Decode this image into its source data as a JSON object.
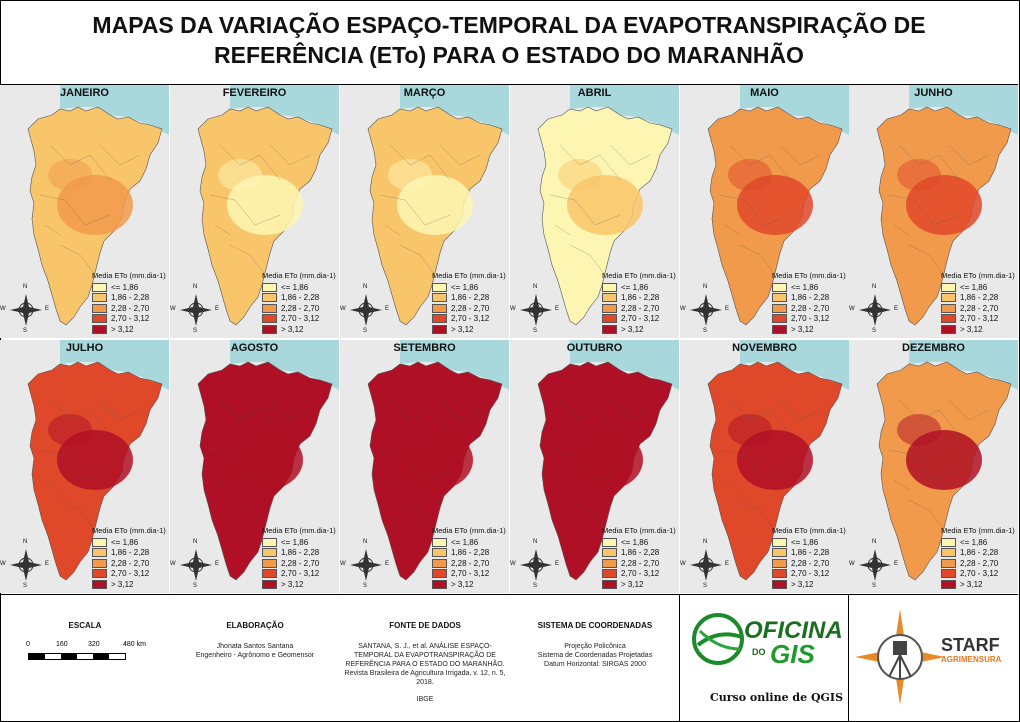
{
  "title": {
    "line1": "MAPAS DA VARIAÇÃO ESPAÇO-TEMPORAL DA EVAPOTRANSPIRAÇÃO DE",
    "line2": "REFERÊNCIA (ETo) PARA O ESTADO DO MARANHÃO"
  },
  "legend": {
    "title": "Media ETo (mm.dia-1)",
    "classes": [
      {
        "label": "<= 1,86",
        "color": "#fdf6b3"
      },
      {
        "label": "1,86 - 2,28",
        "color": "#f9c56a"
      },
      {
        "label": "2,28 - 2,70",
        "color": "#f29a4c"
      },
      {
        "label": "2,70 - 3,12",
        "color": "#e0482a"
      },
      {
        "label": "> 3,12",
        "color": "#b01025"
      }
    ]
  },
  "compass": {
    "n": "N",
    "s": "S",
    "e": "E",
    "w": "W"
  },
  "months": [
    {
      "name": "JANEIRO",
      "base": 1,
      "hot": 2
    },
    {
      "name": "FEVEREIRO",
      "base": 1,
      "hot": 0
    },
    {
      "name": "MARÇO",
      "base": 1,
      "hot": 0
    },
    {
      "name": "ABRIL",
      "base": 0,
      "hot": 1
    },
    {
      "name": "MAIO",
      "base": 2,
      "hot": 3
    },
    {
      "name": "JUNHO",
      "base": 2,
      "hot": 3
    },
    {
      "name": "JULHO",
      "base": 3,
      "hot": 4
    },
    {
      "name": "AGOSTO",
      "base": 4,
      "hot": 4
    },
    {
      "name": "SETEMBRO",
      "base": 4,
      "hot": 4
    },
    {
      "name": "OUTUBRO",
      "base": 4,
      "hot": 4
    },
    {
      "name": "NOVEMBRO",
      "base": 3,
      "hot": 4
    },
    {
      "name": "DEZEMBRO",
      "base": 2,
      "hot": 4
    }
  ],
  "footer": {
    "escala": {
      "heading": "ESCALA",
      "ticks": [
        "0",
        "160",
        "320",
        "480 km"
      ]
    },
    "elaboracao": {
      "heading": "ELABORAÇÃO",
      "lines": [
        "Jhonata Santos Santana",
        "Engenheiro - Agrônomo e Geomensor"
      ]
    },
    "fonte": {
      "heading": "FONTE DE DADOS",
      "lines": [
        "SANTANA, S. J., et al. ANÁLISE ESPAÇO-",
        "TEMPORAL DA EVAPOTRANSPIRAÇÃO DE",
        "REFERÊNCIA PARA O ESTADO DO MARANHÃO.",
        "Revista Brasileira de Agricultura Irrigada, v. 12, n. 5,",
        "2018."
      ],
      "extra": "IBGE"
    },
    "sistema": {
      "heading": "SISTEMA DE COORDENADAS",
      "lines": [
        "Projeção Policônica",
        "Sistema de Coordenadas Projetadas",
        "Datum Horizontal: SIRGAS 2000"
      ]
    },
    "logo1": {
      "line1": "OFICINA",
      "do": "DO",
      "gis": "GIS",
      "tagline": "Curso online de QGIS"
    },
    "logo2": {
      "name": "STARF",
      "sub": "AGRIMENSURA"
    }
  }
}
